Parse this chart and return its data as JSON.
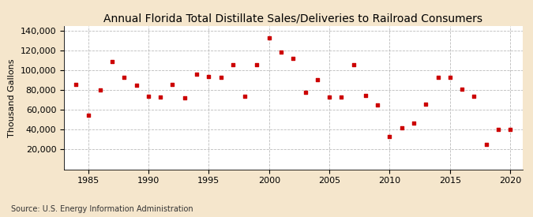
{
  "title": "Annual Florida Total Distillate Sales/Deliveries to Railroad Consumers",
  "ylabel": "Thousand Gallons",
  "source": "Source: U.S. Energy Information Administration",
  "background_color": "#f5e6cc",
  "plot_background_color": "#ffffff",
  "marker_color": "#cc0000",
  "years": [
    1984,
    1985,
    1986,
    1987,
    1988,
    1989,
    1990,
    1991,
    1992,
    1993,
    1994,
    1995,
    1996,
    1997,
    1998,
    1999,
    2000,
    2001,
    2002,
    2003,
    2004,
    2005,
    2006,
    2007,
    2008,
    2009,
    2010,
    2011,
    2012,
    2013,
    2014,
    2015,
    2016,
    2017,
    2018,
    2019,
    2020
  ],
  "values": [
    86000,
    55000,
    80000,
    109000,
    93000,
    85000,
    74000,
    73000,
    86000,
    72000,
    96000,
    94000,
    93000,
    106000,
    74000,
    106000,
    133000,
    119000,
    112000,
    78000,
    91000,
    73000,
    73000,
    106000,
    75000,
    65000,
    33000,
    42000,
    47000,
    66000,
    93000,
    93000,
    81000,
    74000,
    25000,
    40000,
    40000
  ],
  "ylim": [
    0,
    145000
  ],
  "xlim": [
    1983,
    2021
  ],
  "yticks": [
    20000,
    40000,
    60000,
    80000,
    100000,
    120000,
    140000
  ],
  "xticks": [
    1985,
    1990,
    1995,
    2000,
    2005,
    2010,
    2015,
    2020
  ],
  "title_fontsize": 10,
  "label_fontsize": 8,
  "tick_fontsize": 8,
  "source_fontsize": 7
}
